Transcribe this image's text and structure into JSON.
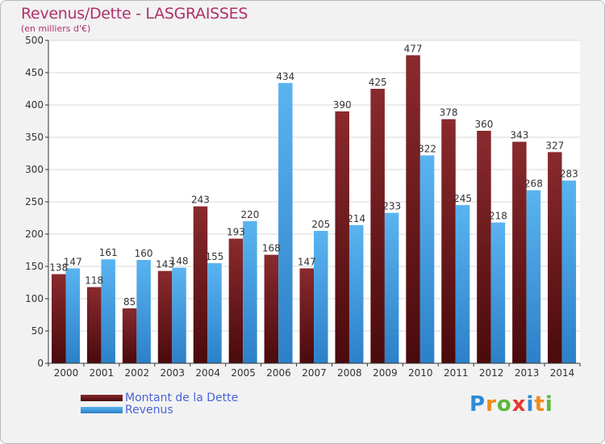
{
  "header": {
    "title": "Revenus/Dette - LASGRAISSES",
    "subtitle": "(en milliers d'€)"
  },
  "logo": {
    "text": "Proxiti",
    "letters": [
      {
        "ch": "P",
        "color": "#2e8bd6"
      },
      {
        "ch": "r",
        "color": "#f08a1c"
      },
      {
        "ch": "o",
        "color": "#5cb83a"
      },
      {
        "ch": "x",
        "color": "#e53a2e"
      },
      {
        "ch": "i",
        "color": "#2e8bd6"
      },
      {
        "ch": "t",
        "color": "#f08a1c"
      },
      {
        "ch": "i",
        "color": "#5cb83a"
      }
    ]
  },
  "colors": {
    "dette": "#7a1e22",
    "revenus": "#4aa3e6"
  },
  "chart_data": {
    "type": "bar",
    "categories": [
      "2000",
      "2001",
      "2002",
      "2003",
      "2004",
      "2005",
      "2006",
      "2007",
      "2008",
      "2009",
      "2010",
      "2011",
      "2012",
      "2013",
      "2014"
    ],
    "series": [
      {
        "name": "Montant de la Dette",
        "values": [
          138,
          118,
          85,
          143,
          243,
          193,
          168,
          147,
          390,
          425,
          477,
          378,
          360,
          343,
          327
        ]
      },
      {
        "name": "Revenus",
        "values": [
          147,
          161,
          160,
          148,
          155,
          220,
          434,
          205,
          214,
          233,
          322,
          245,
          218,
          268,
          283
        ]
      }
    ],
    "title": "Revenus/Dette - LASGRAISSES",
    "ylabel": "(en milliers d'€)",
    "ylim": [
      0,
      500
    ],
    "yticks": [
      0,
      50,
      100,
      150,
      200,
      250,
      300,
      350,
      400,
      450,
      500
    ],
    "grid": true,
    "legend": "bottom-left"
  }
}
